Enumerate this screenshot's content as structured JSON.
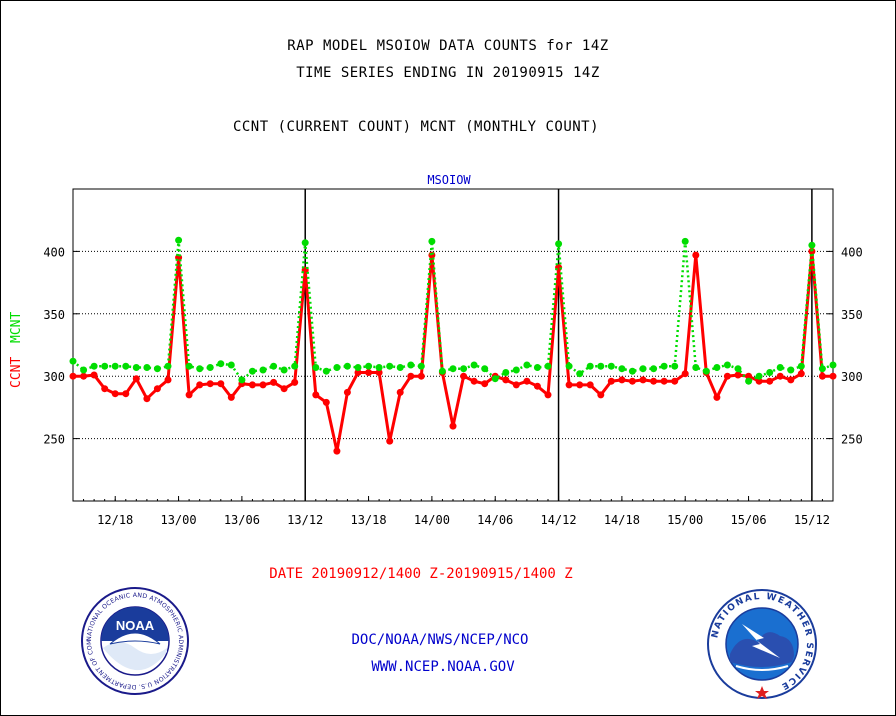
{
  "header": {
    "line1": "RAP MODEL MSOIOW DATA COUNTS for 14Z",
    "line2": "TIME SERIES ENDING IN 20190915 14Z",
    "line3": "CCNT (CURRENT COUNT) MCNT (MONTHLY COUNT)"
  },
  "footer": {
    "date_range": "DATE 20190912/1400 Z-20190915/1400 Z",
    "org": "DOC/NOAA/NWS/NCEP/NCO",
    "url": "WWW.NCEP.NOAA.GOV"
  },
  "logos": {
    "noaa_label": "NOAA",
    "noaa_ring_text": "NATIONAL OCEANIC AND ATMOSPHERIC ADMINISTRATION  U.S. DEPARTMENT OF COMMERCE",
    "nws_ring_text": "NATIONAL WEATHER SERVICE"
  },
  "colors": {
    "ccnt": "#ff0000",
    "mcnt": "#00dd00",
    "title_blue": "#0000cc",
    "date_red": "#ff0000",
    "footer_blue": "#0000cc"
  },
  "chart_data": {
    "type": "line",
    "title": "MSOIOW",
    "ylabel_ccnt": "CCNT",
    "ylabel_mcnt": "MCNT",
    "ylim": [
      200,
      450
    ],
    "yticks": [
      250,
      300,
      350,
      400
    ],
    "xlim": [
      0,
      72
    ],
    "x_unit": "hour",
    "xtick_labels": [
      "12/18",
      "13/00",
      "13/06",
      "13/12",
      "13/18",
      "14/00",
      "14/06",
      "14/12",
      "14/18",
      "15/00",
      "15/06",
      "15/12"
    ],
    "xtick_positions": [
      4,
      10,
      16,
      22,
      28,
      34,
      40,
      46,
      52,
      58,
      64,
      70
    ],
    "day_markers": [
      22,
      46,
      70
    ],
    "grid": true,
    "series": [
      {
        "name": "CCNT",
        "color": "#ff0000",
        "values": [
          300,
          300,
          301,
          290,
          286,
          286,
          298,
          282,
          290,
          297,
          395,
          285,
          293,
          294,
          294,
          283,
          294,
          293,
          293,
          295,
          290,
          295,
          385,
          285,
          279,
          240,
          287,
          303,
          303,
          303,
          248,
          287,
          300,
          300,
          397,
          303,
          260,
          300,
          296,
          294,
          300,
          297,
          293,
          296,
          292,
          285,
          387,
          293,
          293,
          293,
          285,
          296,
          297,
          296,
          297,
          296,
          296,
          296,
          302,
          397,
          303,
          283,
          300,
          301,
          300,
          296,
          296,
          300,
          297,
          302,
          400,
          300,
          300
        ]
      },
      {
        "name": "MCNT",
        "color": "#00dd00",
        "values": [
          312,
          305,
          308,
          308,
          308,
          308,
          307,
          307,
          306,
          308,
          409,
          308,
          306,
          307,
          310,
          309,
          297,
          304,
          305,
          308,
          305,
          308,
          407,
          307,
          304,
          307,
          308,
          307,
          308,
          307,
          308,
          307,
          309,
          308,
          408,
          304,
          306,
          306,
          309,
          306,
          298,
          303,
          305,
          309,
          307,
          308,
          406,
          308,
          302,
          308,
          308,
          308,
          306,
          304,
          306,
          306,
          308,
          308,
          408,
          307,
          304,
          307,
          309,
          306,
          296,
          300,
          303,
          307,
          305,
          308,
          405,
          306,
          309
        ]
      }
    ]
  }
}
